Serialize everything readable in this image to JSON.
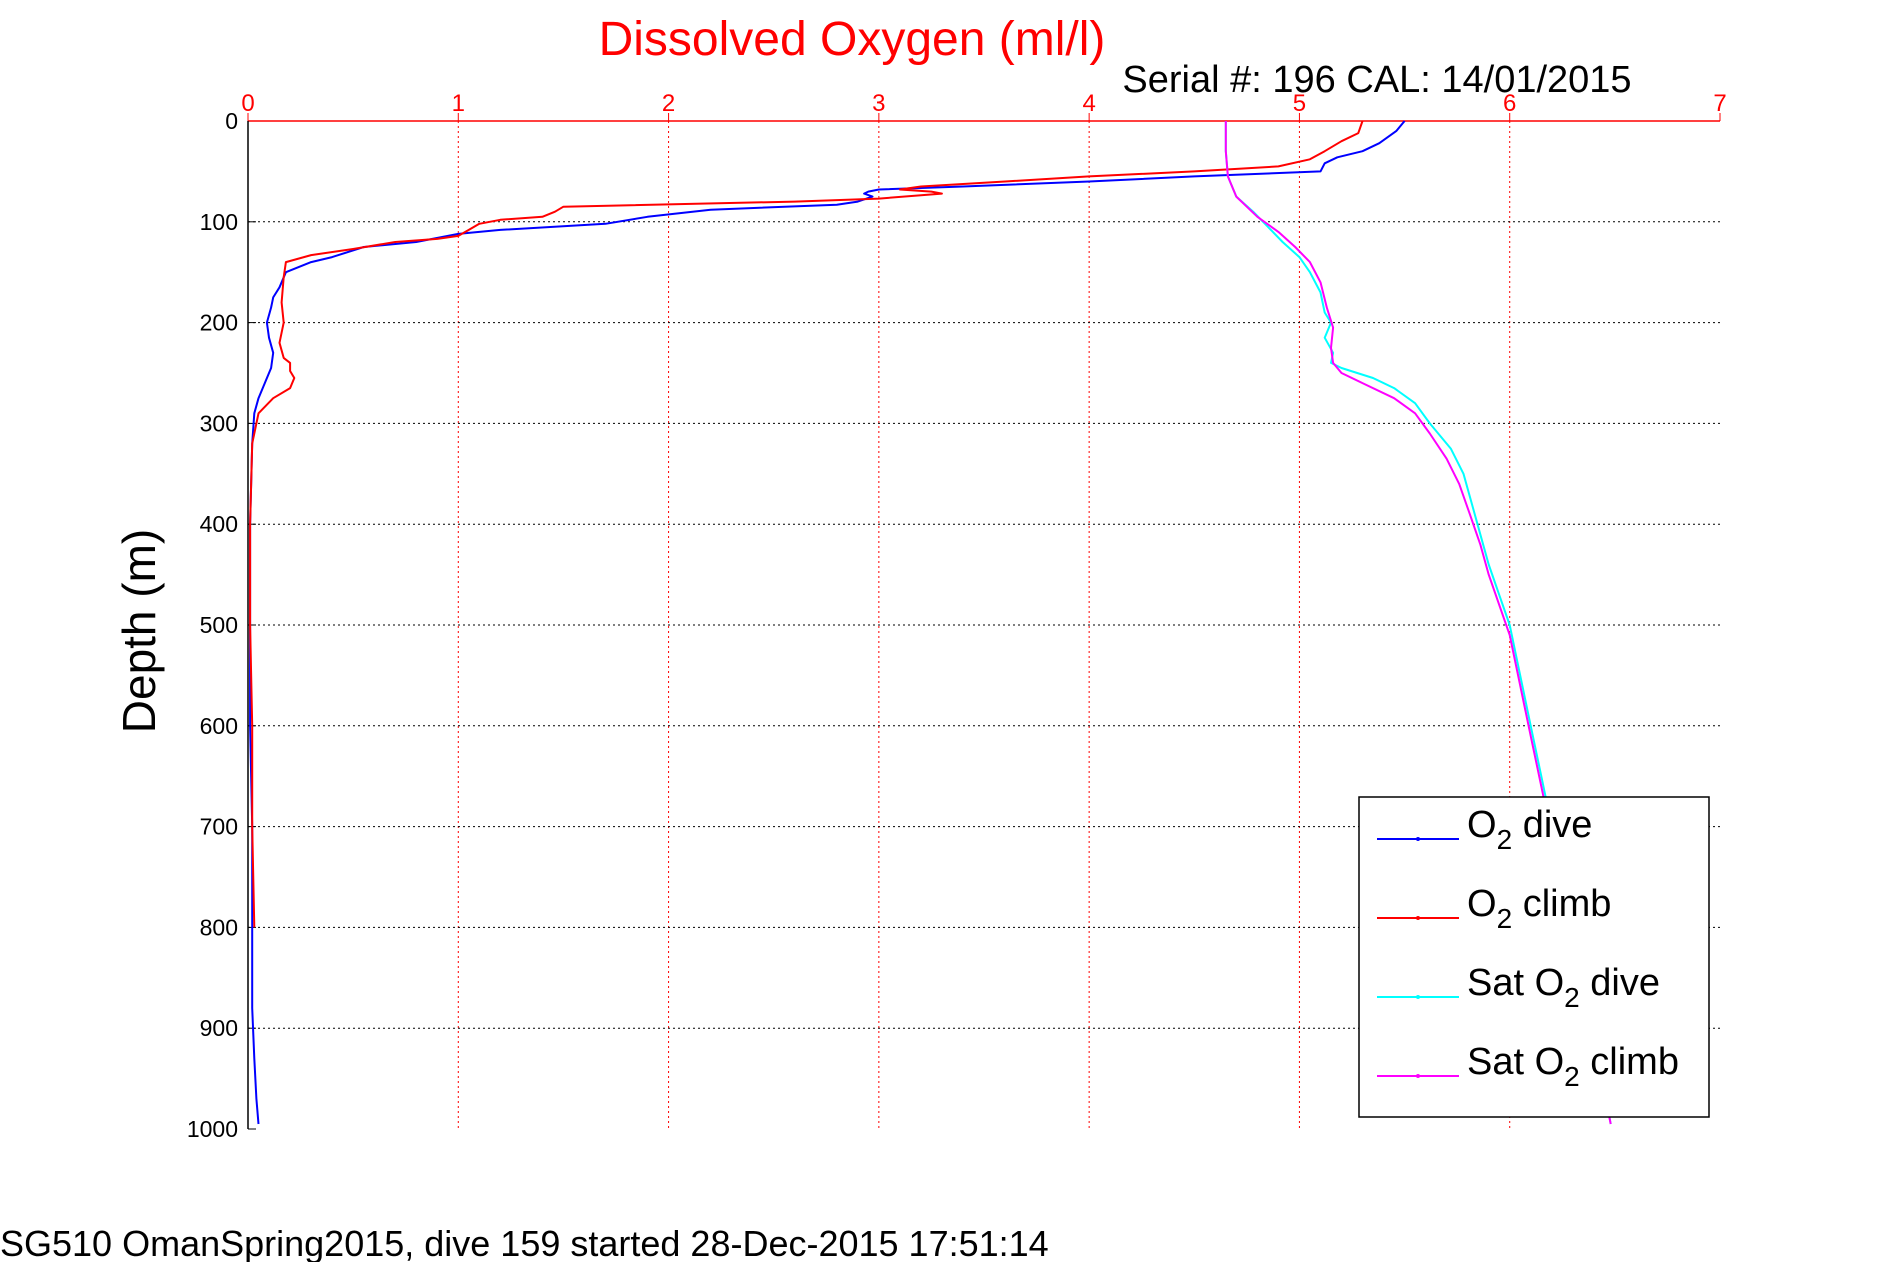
{
  "chart_data": {
    "type": "line",
    "title": "Dissolved Oxygen (ml/l)",
    "subtitle": "Serial #: 196  CAL: 14/01/2015",
    "xlabel": "",
    "ylabel": "Depth (m)",
    "xlim": [
      0,
      7
    ],
    "ylim": [
      0,
      1000
    ],
    "y_reversed": true,
    "x_axis_position": "top",
    "xticks": [
      "0",
      "1",
      "2",
      "3",
      "4",
      "5",
      "6",
      "7"
    ],
    "yticks": [
      "0",
      "100",
      "200",
      "300",
      "400",
      "500",
      "600",
      "700",
      "800",
      "900",
      "1000"
    ],
    "grid": true,
    "legend_position": "bottom-right",
    "footer": "SG510 OmanSpring2015, dive 159 started 28-Dec-2015 17:51:14",
    "series": [
      {
        "name": "O2 dive",
        "legend_base": "O",
        "legend_sub": "2",
        "legend_suffix": " dive",
        "color": "#0000ff",
        "x": [
          5.5,
          5.46,
          5.38,
          5.3,
          5.18,
          5.12,
          5.1,
          4.5,
          4.0,
          3.4,
          3.0,
          2.95,
          2.93,
          2.97,
          2.9,
          2.8,
          2.2,
          1.9,
          1.7,
          1.2,
          1.0,
          0.8,
          0.55,
          0.4,
          0.3,
          0.18,
          0.15,
          0.12,
          0.11,
          0.09,
          0.1,
          0.12,
          0.11,
          0.08,
          0.05,
          0.03,
          0.02,
          0.01,
          0.01,
          0.01,
          0.02,
          0.02,
          0.02,
          0.03,
          0.04,
          0.05
        ],
        "y": [
          0,
          10,
          22,
          30,
          36,
          42,
          50,
          55,
          60,
          65,
          68,
          70,
          72,
          75,
          80,
          83,
          88,
          95,
          102,
          108,
          112,
          120,
          125,
          135,
          140,
          150,
          165,
          175,
          185,
          200,
          215,
          230,
          245,
          260,
          275,
          290,
          320,
          400,
          500,
          600,
          700,
          800,
          880,
          930,
          970,
          995
        ]
      },
      {
        "name": "O2 climb",
        "legend_base": "O",
        "legend_sub": "2",
        "legend_suffix": " climb",
        "color": "#ff0000",
        "x": [
          5.3,
          5.28,
          5.2,
          5.12,
          5.05,
          4.9,
          4.5,
          4.0,
          3.6,
          3.2,
          3.1,
          3.25,
          3.3,
          3.0,
          2.6,
          1.5,
          1.46,
          1.4,
          1.2,
          1.1,
          1.05,
          1.0,
          0.9,
          0.7,
          0.5,
          0.3,
          0.18,
          0.17,
          0.16,
          0.17,
          0.15,
          0.17,
          0.2,
          0.2,
          0.22,
          0.2,
          0.12,
          0.05,
          0.02,
          0.01,
          0.01,
          0.02,
          0.02,
          0.03
        ],
        "y": [
          0,
          12,
          20,
          30,
          38,
          45,
          50,
          55,
          60,
          65,
          68,
          70,
          72,
          77,
          80,
          85,
          90,
          95,
          98,
          102,
          108,
          114,
          117,
          120,
          127,
          133,
          140,
          155,
          180,
          200,
          220,
          235,
          240,
          248,
          255,
          265,
          275,
          290,
          320,
          400,
          500,
          600,
          700,
          800
        ]
      },
      {
        "name": "Sat O2 dive",
        "legend_base": "Sat O",
        "legend_sub": "2",
        "legend_suffix": " dive",
        "color": "#00ffff",
        "x": [
          4.65,
          4.65,
          4.66,
          4.67,
          4.7,
          4.78,
          4.85,
          4.92,
          5.0,
          5.05,
          5.1,
          5.12,
          5.15,
          5.12,
          5.16,
          5.15,
          5.2,
          5.35,
          5.45,
          5.55,
          5.62,
          5.72,
          5.78,
          5.82,
          5.86,
          5.9,
          5.95,
          6.0,
          6.05,
          6.1,
          6.15,
          6.2,
          6.25,
          6.32,
          6.4,
          6.48
        ],
        "y": [
          0,
          30,
          55,
          60,
          75,
          90,
          105,
          120,
          135,
          150,
          170,
          190,
          200,
          215,
          230,
          240,
          245,
          255,
          265,
          280,
          300,
          325,
          350,
          380,
          410,
          440,
          470,
          500,
          550,
          600,
          650,
          700,
          750,
          820,
          900,
          995
        ]
      },
      {
        "name": "Sat O2 climb",
        "legend_base": "Sat O",
        "legend_sub": "2",
        "legend_suffix": " climb",
        "color": "#ff00ff",
        "x": [
          4.65,
          4.65,
          4.66,
          4.67,
          4.7,
          4.8,
          4.9,
          4.98,
          5.05,
          5.1,
          5.13,
          5.16,
          5.15,
          5.16,
          5.2,
          5.3,
          5.45,
          5.55,
          5.62,
          5.7,
          5.76,
          5.81,
          5.86,
          5.9,
          5.95,
          6.0,
          6.05,
          6.1,
          6.15,
          6.2,
          6.25,
          6.32,
          6.4,
          6.48
        ],
        "y": [
          0,
          30,
          55,
          60,
          75,
          95,
          110,
          125,
          140,
          160,
          185,
          205,
          225,
          240,
          250,
          260,
          275,
          290,
          310,
          335,
          360,
          390,
          420,
          450,
          480,
          510,
          560,
          610,
          660,
          710,
          760,
          830,
          910,
          995
        ]
      }
    ]
  }
}
